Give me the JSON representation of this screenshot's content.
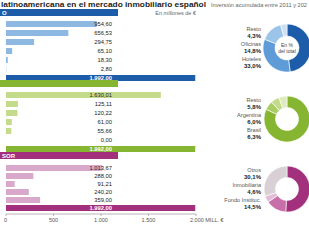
{
  "chart_data": [
    {
      "type": "bar",
      "orientation": "horizontal",
      "title": "latinoamericana en el mercado inmobiliario español",
      "subtitle": "Inversión acumulada entre 2011 y 202",
      "annotations": [
        "O",
        "En millones de €"
      ],
      "categories": [
        null,
        null,
        null,
        null,
        null,
        null,
        null
      ],
      "values": [
        954.6,
        656.53,
        294.75,
        65.1,
        18.3,
        2.8,
        1992
      ],
      "value_labels": [
        "954,60",
        "656,53",
        "294,75",
        "65,10",
        "18,30",
        "2,80",
        "1.992,00"
      ],
      "colors": [
        "#8cb8e2",
        "#8cb8e2",
        "#8cb8e2",
        "#8cb8e2",
        "#8cb8e2",
        "#8cb8e2",
        "#1d5ca8"
      ],
      "xlim": [
        0,
        2000
      ],
      "data_labels": true,
      "tick_labels": false
    },
    {
      "type": "pie",
      "annotations": [
        "En % del total"
      ],
      "categories": [
        null,
        "Hoteles",
        "Oficinas",
        "Resto"
      ],
      "values": [
        47.9,
        33.0,
        14.8,
        4.3
      ],
      "value_labels": [
        null,
        "33,0%",
        "14,8%",
        "4,3%"
      ],
      "colors": [
        "#1d5ca8",
        "#5f9bd6",
        "#9cc3e8",
        "#cde0f3"
      ],
      "data_labels": true
    },
    {
      "type": "bar",
      "orientation": "horizontal",
      "categories": [
        null,
        null,
        null,
        null,
        null,
        null,
        null
      ],
      "values": [
        1630.01,
        125.11,
        120.22,
        61.0,
        55.66,
        0.0,
        1992
      ],
      "value_labels": [
        "1.630,01",
        "125,11",
        "120,22",
        "61,00",
        "55,66",
        "0,00",
        "1.992,00"
      ],
      "colors": [
        "#c4db8b",
        "#c4db8b",
        "#c4db8b",
        "#c4db8b",
        "#c4db8b",
        "#c4db8b",
        "#86b531"
      ],
      "xlim": [
        0,
        2000
      ],
      "data_labels": true,
      "tick_labels": false
    },
    {
      "type": "pie",
      "categories": [
        null,
        "Brasil",
        "Argentina",
        "Resto"
      ],
      "values": [
        81.8,
        6.3,
        6.0,
        5.8
      ],
      "value_labels": [
        null,
        "6,3%",
        "6,0%",
        "5,8%"
      ],
      "colors": [
        "#86b531",
        "#a9cc63",
        "#c4db8b",
        "#dfeabf"
      ],
      "data_labels": true
    },
    {
      "type": "bar",
      "orientation": "horizontal",
      "annotations": [
        "SOR"
      ],
      "categories": [
        null,
        null,
        null,
        null,
        null,
        null
      ],
      "values": [
        1013.67,
        288.0,
        91.21,
        240.2,
        359.0,
        1992
      ],
      "value_labels": [
        "1.013,67",
        "288,00",
        "91,21",
        "240,20",
        "359,00",
        "1.992,00"
      ],
      "colors": [
        "#d9a9cb",
        "#d9a9cb",
        "#d9a9cb",
        "#d9a9cb",
        "#d9a9cb",
        "#a3307c"
      ],
      "xlim": [
        0,
        2000
      ],
      "xticks": [
        0,
        500,
        {
          "value": 1000,
          "label": "1.000"
        },
        {
          "value": 1500,
          "label": "1.500"
        },
        {
          "value": 2000,
          "label": "2.000 MILL. €"
        }
      ],
      "data_labels": true,
      "tick_labels": "x"
    },
    {
      "type": "pie",
      "categories": [
        null,
        "Fondo Instituc.",
        "Inmobiliaria",
        "Otros"
      ],
      "values": [
        50.9,
        14.5,
        4.6,
        30.1
      ],
      "value_labels": [
        null,
        "14,5%",
        "4,6%",
        "30,1%"
      ],
      "colors": [
        "#a3307c",
        "#c76fa9",
        "#e3bcd7",
        "#d8d0d5"
      ],
      "data_labels": true
    }
  ]
}
